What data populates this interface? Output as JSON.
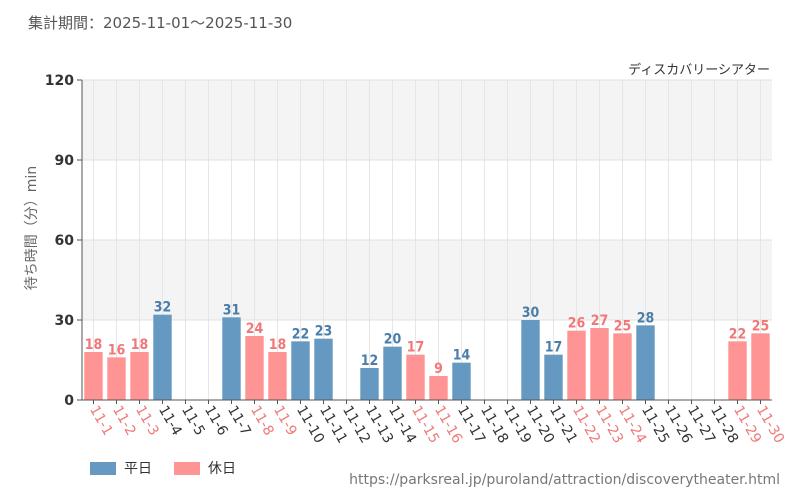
{
  "page": {
    "period_label": "集計期間：2025-11-01～2025-11-30",
    "source_url": "https://parksreal.jp/puroland/attraction/discoverytheater.html"
  },
  "colors": {
    "weekday": "#6699c2",
    "holiday": "#ff9494",
    "weekday_text": "#4a7eaa",
    "holiday_text": "#f07878"
  },
  "chart_data": {
    "type": "bar",
    "title": "ディスカバリーシアター",
    "xlabel": "",
    "ylabel": "待ち時間（分）min",
    "ylim": [
      0,
      120
    ],
    "yticks": [
      0,
      30,
      60,
      90,
      120
    ],
    "grid": true,
    "legend": [
      {
        "name": "平日",
        "type": "weekday"
      },
      {
        "name": "休日",
        "type": "holiday"
      }
    ],
    "legend_position": "bottom-left",
    "categories": [
      "11-1",
      "11-2",
      "11-3",
      "11-4",
      "11-5",
      "11-6",
      "11-7",
      "11-8",
      "11-9",
      "11-10",
      "11-11",
      "11-12",
      "11-13",
      "11-14",
      "11-15",
      "11-16",
      "11-17",
      "11-18",
      "11-19",
      "11-20",
      "11-21",
      "11-22",
      "11-23",
      "11-24",
      "11-25",
      "11-26",
      "11-27",
      "11-28",
      "11-29",
      "11-30"
    ],
    "day_types": [
      "holiday",
      "holiday",
      "holiday",
      "weekday",
      "weekday",
      "weekday",
      "weekday",
      "holiday",
      "holiday",
      "weekday",
      "weekday",
      "weekday",
      "weekday",
      "weekday",
      "holiday",
      "holiday",
      "weekday",
      "weekday",
      "weekday",
      "weekday",
      "weekday",
      "holiday",
      "holiday",
      "holiday",
      "weekday",
      "weekday",
      "weekday",
      "weekday",
      "holiday",
      "holiday"
    ],
    "values": [
      18,
      16,
      18,
      32,
      null,
      null,
      31,
      24,
      18,
      22,
      23,
      null,
      12,
      20,
      17,
      9,
      14,
      null,
      null,
      30,
      17,
      26,
      27,
      25,
      28,
      null,
      null,
      null,
      22,
      25
    ]
  }
}
